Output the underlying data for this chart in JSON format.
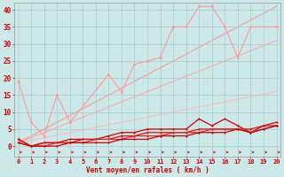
{
  "x": [
    0,
    1,
    2,
    3,
    4,
    5,
    6,
    7,
    8,
    9,
    10,
    11,
    12,
    13,
    14,
    15,
    16,
    17,
    18,
    19,
    20
  ],
  "line_top": [
    19,
    7,
    3,
    15,
    7,
    null,
    null,
    21,
    16,
    24,
    25,
    26,
    35,
    35,
    41,
    41,
    35,
    26,
    35,
    null,
    35
  ],
  "line_slope1": [
    1,
    1.75,
    2.5,
    3.25,
    4,
    4.75,
    5.5,
    6.25,
    7,
    7.75,
    8.5,
    9.25,
    10,
    10.75,
    11.5,
    12.25,
    13,
    13.75,
    14.5,
    15.25,
    16
  ],
  "line_slope2": [
    1,
    2.5,
    4,
    5.5,
    7,
    8.5,
    10,
    11.5,
    13,
    14.5,
    16,
    17.5,
    19,
    20.5,
    22,
    23.5,
    25,
    26.5,
    28,
    29.5,
    31
  ],
  "line_slope3": [
    1,
    3,
    5,
    7,
    9,
    11,
    13,
    15,
    17,
    19,
    21,
    23,
    25,
    27,
    29,
    31,
    33,
    35,
    37,
    39,
    41
  ],
  "line_red1": [
    2,
    0,
    1,
    1,
    2,
    2,
    2,
    3,
    4,
    4,
    5,
    5,
    5,
    5,
    8,
    6,
    8,
    6,
    4,
    6,
    7
  ],
  "line_red2": [
    2,
    0,
    1,
    1,
    1,
    2,
    2,
    2,
    3,
    3,
    4,
    4,
    4,
    4,
    5,
    5,
    5,
    5,
    5,
    6,
    6
  ],
  "line_red3": [
    1,
    0,
    0,
    1,
    1,
    1,
    2,
    2,
    2,
    3,
    3,
    3,
    4,
    4,
    4,
    5,
    5,
    5,
    4,
    5,
    6
  ],
  "line_red4": [
    1,
    0,
    0,
    0,
    1,
    1,
    1,
    1,
    2,
    2,
    2,
    3,
    3,
    3,
    4,
    4,
    4,
    5,
    4,
    5,
    6
  ],
  "bg_color": "#cce8e8",
  "grid_color": "#aacccc",
  "line_pink": "#ff9999",
  "line_red_dark": "#cc0000",
  "slope_color1": "#ffbbbb",
  "slope_color2": "#ffaaaa",
  "slope_color3": "#ff9999",
  "xlabel": "Vent moyen/en rafales ( km/h )",
  "ylabel_ticks": [
    0,
    5,
    10,
    15,
    20,
    25,
    30,
    35,
    40
  ],
  "xticks": [
    0,
    1,
    2,
    3,
    4,
    5,
    6,
    7,
    8,
    9,
    10,
    11,
    12,
    13,
    14,
    15,
    16,
    17,
    18,
    19,
    20
  ],
  "xlim": [
    0,
    20
  ],
  "ylim": [
    0,
    42
  ]
}
